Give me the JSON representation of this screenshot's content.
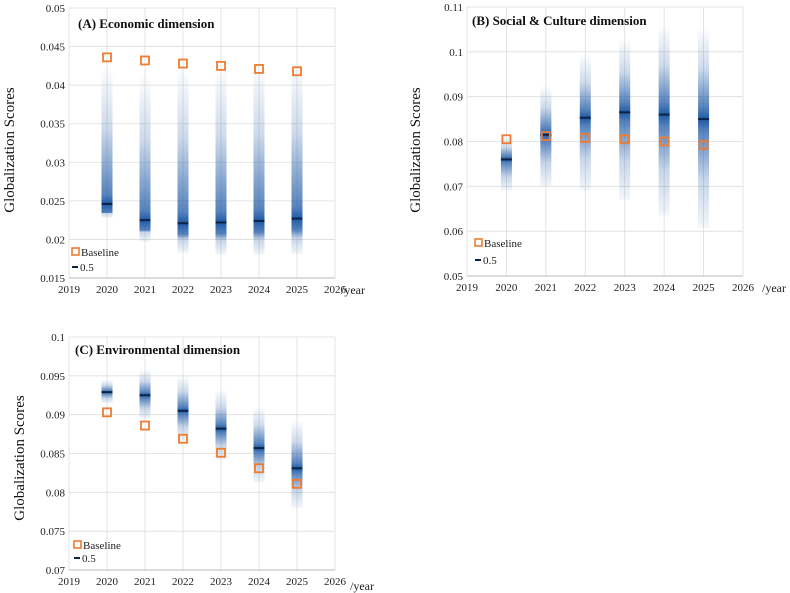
{
  "colors": {
    "band": "#1f5aa6",
    "median": "#0d2345",
    "baseline": "#ee7c31",
    "grid": "#dddddd",
    "axis": "#b8b8b8"
  },
  "chart_data": [
    {
      "type": "scatter",
      "panel": "A",
      "title": "(A)  Economic dimension",
      "ylabel": "Globalization Scores",
      "xunit": "/year",
      "xlim": [
        2019,
        2026
      ],
      "xticks": [
        2019,
        2020,
        2021,
        2022,
        2023,
        2024,
        2025,
        2026
      ],
      "ylim": [
        0.015,
        0.05
      ],
      "yticks": [
        0.015,
        0.02,
        0.025,
        0.03,
        0.035,
        0.04,
        0.045,
        0.05
      ],
      "ytick_labels": [
        "0.015",
        "0.02",
        "0.025",
        "0.03",
        "0.035",
        "0.04",
        "0.045",
        "0.05"
      ],
      "legend": {
        "baseline": "Baseline",
        "median": "0.5"
      },
      "years": [
        2020,
        2021,
        2022,
        2023,
        2024,
        2025
      ],
      "baseline": [
        0.0436,
        0.0432,
        0.0428,
        0.0425,
        0.0421,
        0.0418
      ],
      "median": [
        0.0246,
        0.0225,
        0.0221,
        0.0222,
        0.0224,
        0.0227
      ],
      "low": [
        0.0228,
        0.0197,
        0.0183,
        0.018,
        0.018,
        0.0181
      ],
      "high": [
        0.0425,
        0.0415,
        0.0425,
        0.0425,
        0.043,
        0.043
      ]
    },
    {
      "type": "scatter",
      "panel": "B",
      "title": "(B)  Social & Culture dimension",
      "ylabel": "Globalization Scores",
      "xunit": "/year",
      "xlim": [
        2019,
        2026
      ],
      "xticks": [
        2019,
        2020,
        2021,
        2022,
        2023,
        2024,
        2025,
        2026
      ],
      "ylim": [
        0.05,
        0.11
      ],
      "yticks": [
        0.05,
        0.06,
        0.07,
        0.08,
        0.09,
        0.1,
        0.11
      ],
      "ytick_labels": [
        "0.05",
        "0.06",
        "0.07",
        "0.08",
        "0.09",
        "0.1",
        "0.11"
      ],
      "legend": {
        "baseline": "Baseline",
        "median": "0.5"
      },
      "years": [
        2020,
        2021,
        2022,
        2023,
        2024,
        2025
      ],
      "baseline": [
        0.0805,
        0.0812,
        0.0808,
        0.0805,
        0.08,
        0.0792
      ],
      "median": [
        0.076,
        0.0815,
        0.0853,
        0.0865,
        0.086,
        0.085
      ],
      "low": [
        0.069,
        0.07,
        0.069,
        0.067,
        0.0635,
        0.0607
      ],
      "high": [
        0.081,
        0.0925,
        0.0995,
        0.103,
        0.106,
        0.1055
      ]
    },
    {
      "type": "scatter",
      "panel": "C",
      "title": "(C)  Environmental dimension",
      "ylabel": "Globalization Scores",
      "xunit": "/year",
      "xlim": [
        2019,
        2026
      ],
      "xticks": [
        2019,
        2020,
        2021,
        2022,
        2023,
        2024,
        2025,
        2026
      ],
      "ylim": [
        0.07,
        0.1
      ],
      "yticks": [
        0.07,
        0.075,
        0.08,
        0.085,
        0.09,
        0.095,
        0.1
      ],
      "ytick_labels": [
        "0.07",
        "0.075",
        "0.08",
        "0.085",
        "0.09",
        "0.095",
        "0.1"
      ],
      "legend": {
        "baseline": "Baseline",
        "median": "0.5"
      },
      "years": [
        2020,
        2021,
        2022,
        2023,
        2024,
        2025
      ],
      "baseline": [
        0.0903,
        0.0886,
        0.0869,
        0.0851,
        0.0831,
        0.0811
      ],
      "median": [
        0.0929,
        0.0925,
        0.0905,
        0.0882,
        0.0857,
        0.0831
      ],
      "low": [
        0.0915,
        0.0895,
        0.0867,
        0.0842,
        0.0813,
        0.078
      ],
      "high": [
        0.0945,
        0.0958,
        0.095,
        0.0932,
        0.091,
        0.0893
      ]
    }
  ]
}
